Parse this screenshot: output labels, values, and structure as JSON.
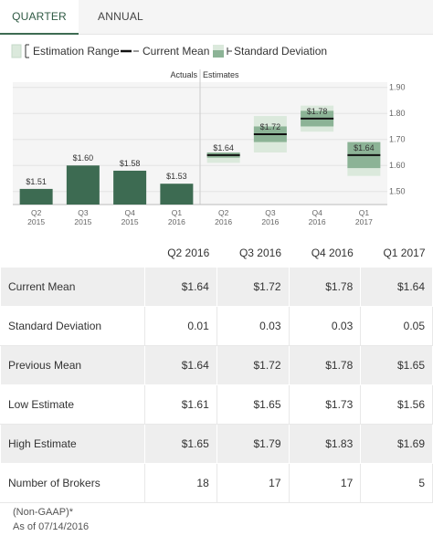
{
  "tabs": {
    "quarter": "QUARTER",
    "annual": "ANNUAL"
  },
  "legend": {
    "range": "Estimation Range",
    "mean": "Current Mean",
    "sd": "Standard Deviation"
  },
  "colors": {
    "actual_bar": "#3d6b52",
    "range_fill": "#dbe9dc",
    "sd_fill": "#8cb396",
    "mean_line": "#111111",
    "tab_active": "#3d6b52"
  },
  "chart_data": {
    "type": "bar",
    "section_labels": {
      "actuals": "Actuals",
      "estimates": "Estimates"
    },
    "ylim": [
      1.45,
      1.92
    ],
    "yticks": [
      1.5,
      1.6,
      1.7,
      1.8,
      1.9
    ],
    "ytick_labels": [
      "1.50",
      "1.60",
      "1.70",
      "1.80",
      "1.90"
    ],
    "categories": [
      [
        "Q2",
        "2015"
      ],
      [
        "Q3",
        "2015"
      ],
      [
        "Q4",
        "2015"
      ],
      [
        "Q1",
        "2016"
      ],
      [
        "Q2",
        "2016"
      ],
      [
        "Q3",
        "2016"
      ],
      [
        "Q4",
        "2016"
      ],
      [
        "Q1",
        "2017"
      ]
    ],
    "actuals": [
      {
        "value": 1.51,
        "label": "$1.51"
      },
      {
        "value": 1.6,
        "label": "$1.60"
      },
      {
        "value": 1.58,
        "label": "$1.58"
      },
      {
        "value": 1.53,
        "label": "$1.53"
      }
    ],
    "estimates": [
      {
        "mean": 1.64,
        "sd": 0.01,
        "low": 1.61,
        "high": 1.65,
        "label": "$1.64"
      },
      {
        "mean": 1.72,
        "sd": 0.03,
        "low": 1.65,
        "high": 1.79,
        "label": "$1.72"
      },
      {
        "mean": 1.78,
        "sd": 0.03,
        "low": 1.73,
        "high": 1.83,
        "label": "$1.78"
      },
      {
        "mean": 1.64,
        "sd": 0.05,
        "low": 1.56,
        "high": 1.69,
        "label": "$1.64"
      }
    ]
  },
  "table": {
    "columns": [
      "Q2 2016",
      "Q3 2016",
      "Q4 2016",
      "Q1 2017"
    ],
    "rows": [
      {
        "label": "Current Mean",
        "values": [
          "$1.64",
          "$1.72",
          "$1.78",
          "$1.64"
        ]
      },
      {
        "label": "Standard Deviation",
        "values": [
          "0.01",
          "0.03",
          "0.03",
          "0.05"
        ]
      },
      {
        "label": "Previous Mean",
        "values": [
          "$1.64",
          "$1.72",
          "$1.78",
          "$1.65"
        ]
      },
      {
        "label": "Low Estimate",
        "values": [
          "$1.61",
          "$1.65",
          "$1.73",
          "$1.56"
        ]
      },
      {
        "label": "High Estimate",
        "values": [
          "$1.65",
          "$1.79",
          "$1.83",
          "$1.69"
        ]
      },
      {
        "label": "Number of Brokers",
        "values": [
          "18",
          "17",
          "17",
          "5"
        ]
      }
    ]
  },
  "footnote": {
    "basis": "(Non-GAAP)*",
    "as_of": "As of 07/14/2016"
  }
}
